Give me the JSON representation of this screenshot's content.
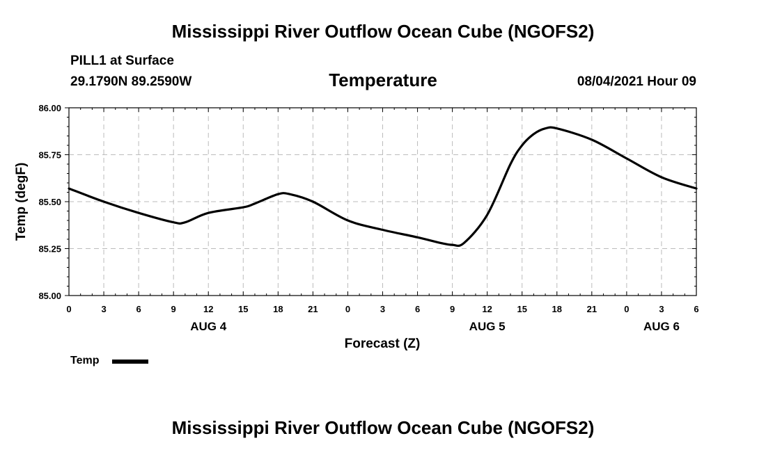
{
  "header": {
    "title": "Mississippi River Outflow Ocean Cube (NGOFS2)",
    "station": "PILL1 at Surface",
    "coords": "29.1790N  89.2590W",
    "variable": "Temperature",
    "datetime": "08/04/2021 Hour 09"
  },
  "footer": {
    "title": "Mississippi River Outflow Ocean Cube (NGOFS2)"
  },
  "legend": {
    "label": "Temp"
  },
  "chart_data": {
    "type": "line",
    "title": "Temperature",
    "xlabel": "Forecast (Z)",
    "ylabel": "Temp (degF)",
    "ylim": [
      85.0,
      86.0
    ],
    "xlim": [
      0,
      54
    ],
    "grid": true,
    "y_ticks": [
      "85.00",
      "85.25",
      "85.50",
      "85.75",
      "86.00"
    ],
    "y_tick_values": [
      85.0,
      85.25,
      85.5,
      85.75,
      86.0
    ],
    "x_ticks": [
      "0",
      "3",
      "6",
      "9",
      "12",
      "15",
      "18",
      "21",
      "0",
      "3",
      "6",
      "9",
      "12",
      "15",
      "18",
      "21",
      "0",
      "3",
      "6"
    ],
    "day_labels": [
      {
        "label": "AUG 4",
        "hour": 12
      },
      {
        "label": "AUG 5",
        "hour": 36
      },
      {
        "label": "AUG 6",
        "hour": 51
      }
    ],
    "series": [
      {
        "name": "Temp",
        "color": "#000000",
        "x": [
          0,
          3,
          6,
          9,
          10,
          12,
          15,
          16,
          18,
          19,
          21,
          24,
          27,
          30,
          32,
          33,
          34,
          36,
          38,
          39,
          40,
          41,
          42,
          45,
          48,
          51,
          54
        ],
        "values": [
          85.57,
          85.5,
          85.44,
          85.39,
          85.39,
          85.44,
          85.47,
          85.49,
          85.54,
          85.54,
          85.5,
          85.4,
          85.35,
          85.31,
          85.28,
          85.27,
          85.28,
          85.43,
          85.7,
          85.8,
          85.86,
          85.89,
          85.89,
          85.83,
          85.73,
          85.63,
          85.57
        ]
      }
    ]
  }
}
